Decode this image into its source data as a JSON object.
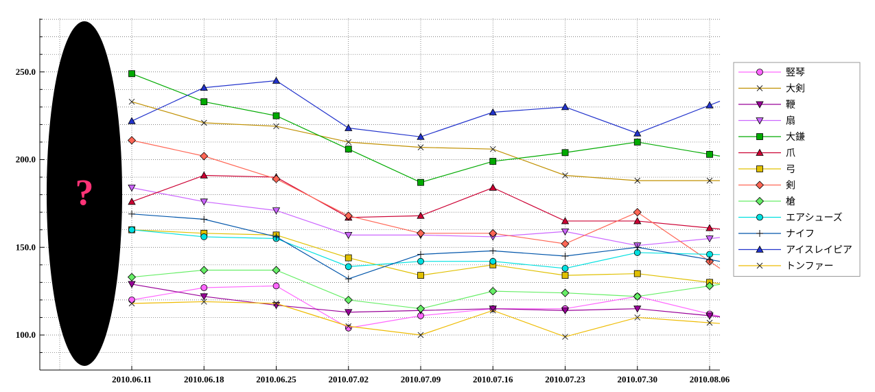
{
  "chart_data": {
    "type": "line",
    "title": "",
    "xlabel": "",
    "ylabel": "",
    "ylim": [
      90,
      282
    ],
    "x": [
      "2010.06.11",
      "2010.06.18",
      "2010.06.25",
      "2010.07.02",
      "2010.07.09",
      "2010.07.16",
      "2010.07.23",
      "2010.07.30",
      "2010.08.06"
    ],
    "y_ticks": [
      "100.0",
      "150.0",
      "200.0",
      "250.0"
    ],
    "grid": true,
    "legend_position": "right",
    "overlay_symbol": "?",
    "series": [
      {
        "name": "竪琴",
        "color": "#ff66ff",
        "marker": "circle",
        "values": [
          120,
          127,
          128,
          104,
          111,
          115,
          115,
          122,
          112
        ]
      },
      {
        "name": "大剣",
        "color": "#c09000",
        "marker": "x",
        "values": [
          233,
          221,
          219,
          210,
          207,
          206,
          191,
          188,
          188
        ]
      },
      {
        "name": "鞭",
        "color": "#990099",
        "marker": "triangle-down",
        "values": [
          129,
          122,
          117,
          113,
          114,
          115,
          114,
          115,
          111
        ]
      },
      {
        "name": "扇",
        "color": "#cc66ff",
        "marker": "triangle-down",
        "values": [
          184,
          176,
          171,
          157,
          157,
          156,
          159,
          151,
          155
        ]
      },
      {
        "name": "大鎌",
        "color": "#00aa00",
        "marker": "square",
        "values": [
          249,
          233,
          225,
          206,
          187,
          199,
          204,
          210,
          203
        ]
      },
      {
        "name": "爪",
        "color": "#cc0033",
        "marker": "triangle-up",
        "values": [
          176,
          191,
          190,
          167,
          168,
          184,
          165,
          165,
          161
        ]
      },
      {
        "name": "弓",
        "color": "#e0c000",
        "marker": "square",
        "values": [
          160,
          158,
          157,
          144,
          134,
          140,
          134,
          135,
          130
        ]
      },
      {
        "name": "剣",
        "color": "#ff6655",
        "marker": "diamond",
        "values": [
          211,
          202,
          189,
          168,
          158,
          158,
          152,
          170,
          142
        ]
      },
      {
        "name": "槍",
        "color": "#66ee66",
        "marker": "diamond",
        "values": [
          133,
          137,
          137,
          120,
          115,
          125,
          124,
          122,
          128
        ]
      },
      {
        "name": "エアシューズ",
        "color": "#00e0e0",
        "marker": "circle",
        "values": [
          160,
          156,
          155,
          139,
          142,
          142,
          138,
          147,
          146
        ]
      },
      {
        "name": "ナイフ",
        "color": "#0055aa",
        "marker": "plus",
        "values": [
          169,
          166,
          156,
          132,
          146,
          148,
          145,
          150,
          143
        ]
      },
      {
        "name": "アイスレイピア",
        "color": "#2233cc",
        "marker": "triangle-up",
        "values": [
          222,
          241,
          245,
          218,
          213,
          227,
          230,
          215,
          231
        ]
      },
      {
        "name": "トンファー",
        "color": "#eebb00",
        "marker": "x",
        "values": [
          118,
          119,
          118,
          105,
          100,
          114,
          99,
          110,
          107
        ]
      }
    ]
  }
}
